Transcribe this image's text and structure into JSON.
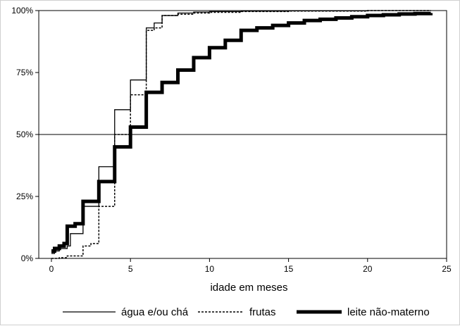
{
  "chart_data": {
    "type": "line",
    "title": "",
    "xlabel": "idade em meses",
    "ylabel": "",
    "xlim": [
      0,
      25
    ],
    "ylim": [
      0,
      100
    ],
    "x_ticks": [
      "0",
      "5",
      "10",
      "15",
      "20",
      "25"
    ],
    "y_ticks": [
      "0%",
      "25%",
      "50%",
      "75%",
      "100%"
    ],
    "reference_line_y": 50,
    "grid": false,
    "legend_position": "bottom",
    "series": [
      {
        "name": "água e/ou chá",
        "style": "solid-thin",
        "color": "#000000",
        "x": [
          0,
          0.2,
          0.5,
          1,
          1.2,
          2,
          3,
          4,
          5,
          6,
          6.5,
          7,
          8,
          9,
          10,
          12,
          15,
          20,
          24
        ],
        "y": [
          2,
          3,
          4,
          5,
          10,
          21,
          37,
          60,
          72,
          93,
          95,
          98,
          99,
          99.4,
          99.6,
          99.8,
          99.9,
          100,
          100
        ]
      },
      {
        "name": "frutas",
        "style": "dashed",
        "color": "#000000",
        "x": [
          0,
          0.5,
          1,
          2,
          2.5,
          3,
          4,
          5,
          6,
          6.5,
          7,
          8,
          9,
          10,
          12,
          15,
          20,
          24
        ],
        "y": [
          0,
          0.3,
          1,
          5,
          6,
          21,
          50,
          66,
          92,
          93,
          98,
          98.5,
          99,
          99.3,
          99.6,
          99.8,
          100,
          100
        ]
      },
      {
        "name": "leite não-materno",
        "style": "solid-thick",
        "color": "#000000",
        "x": [
          0,
          0.2,
          0.5,
          0.8,
          1,
          1.5,
          2,
          3,
          4,
          5,
          6,
          7,
          8,
          9,
          10,
          11,
          12,
          13,
          14,
          15,
          16,
          17,
          18,
          19,
          20,
          21,
          22,
          23,
          24
        ],
        "y": [
          3,
          4,
          5,
          6,
          13,
          14,
          23,
          31,
          45,
          53,
          67,
          71,
          76,
          81,
          85,
          88,
          92,
          93,
          94,
          95,
          96,
          96.5,
          97,
          97.5,
          98,
          98.3,
          98.6,
          98.8,
          99
        ]
      }
    ]
  }
}
